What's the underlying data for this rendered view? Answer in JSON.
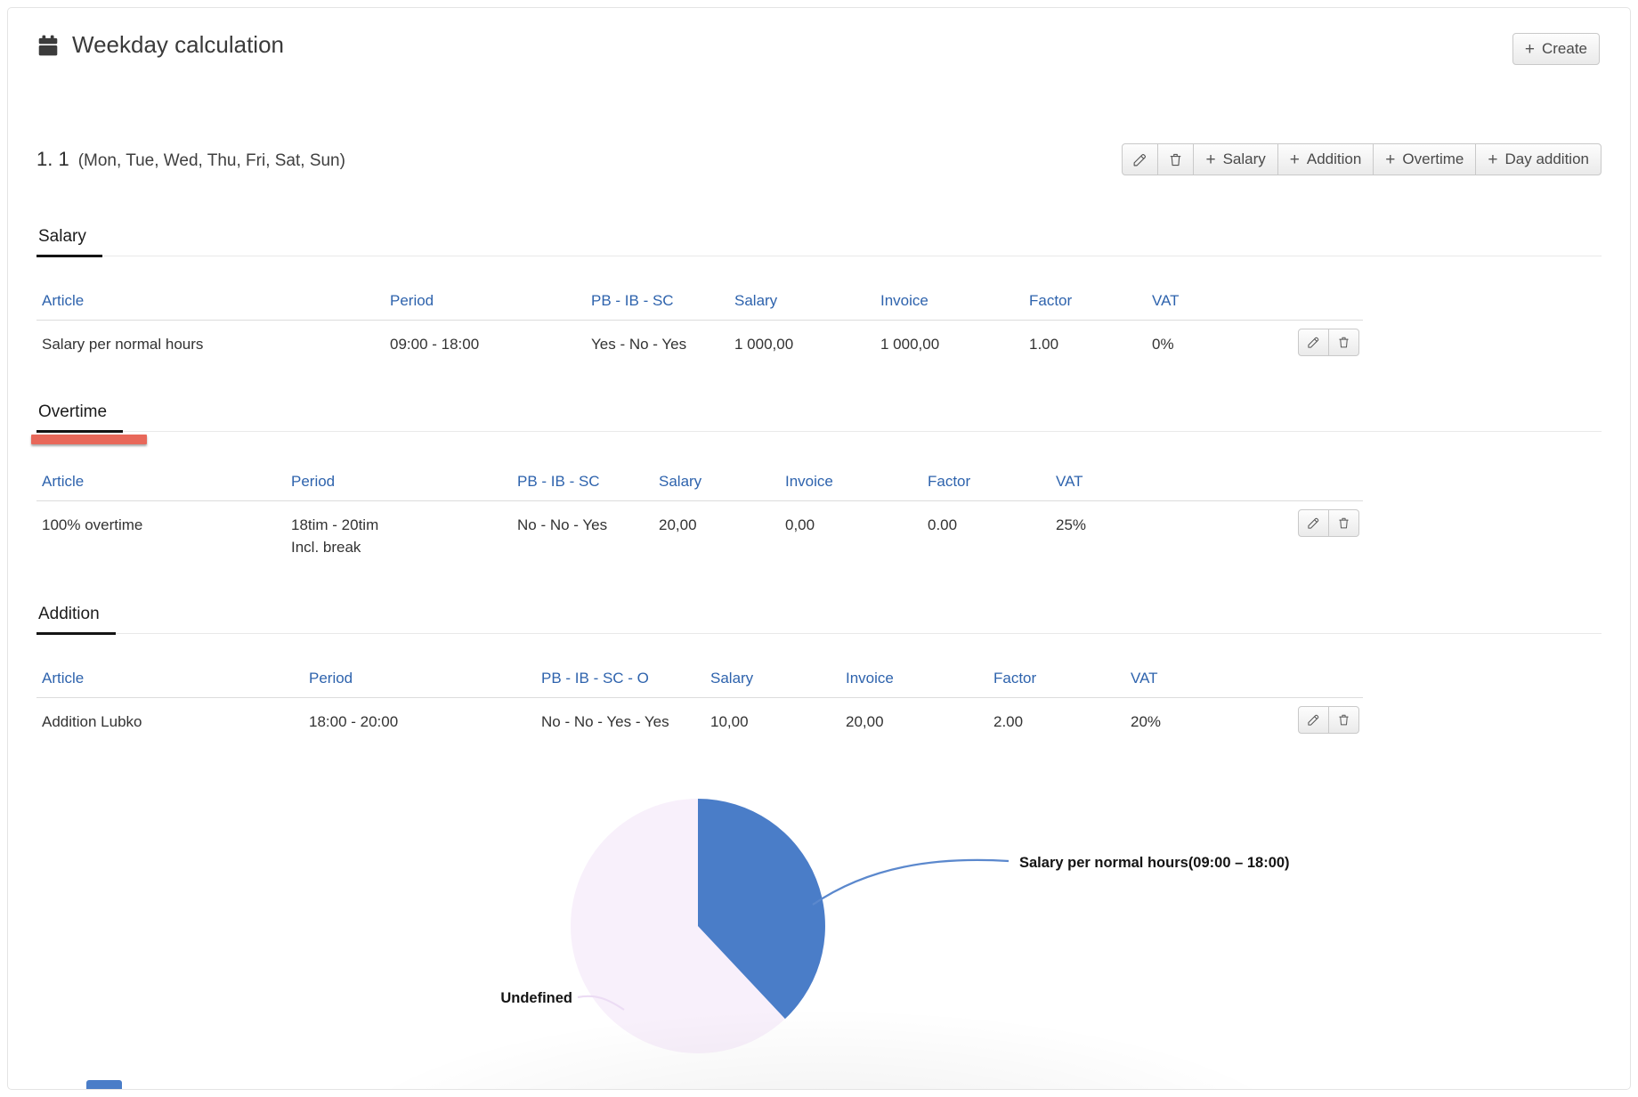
{
  "colors": {
    "accent_blue": "#2e63ad",
    "pie_blue": "#4a7dc8",
    "pie_light": "#f8f0fb",
    "marker_red": "#e8685a"
  },
  "icons": {
    "plus_glyph": "+",
    "names": [
      "calendar-icon",
      "pencil-icon",
      "trash-icon",
      "plus-icon"
    ]
  },
  "header": {
    "title": "Weekday calculation",
    "create_label": "Create"
  },
  "group": {
    "number": "1. 1",
    "days": "(Mon, Tue, Wed, Thu, Fri, Sat, Sun)",
    "toolbar": {
      "salary": "Salary",
      "addition": "Addition",
      "overtime": "Overtime",
      "day_addition": "Day addition"
    }
  },
  "sections": [
    {
      "title": "Salary",
      "columns": [
        "Article",
        "Period",
        "PB - IB - SC",
        "Salary",
        "Invoice",
        "Factor",
        "VAT"
      ],
      "rows": [
        {
          "article": "Salary per normal hours",
          "period": "09:00 - 18:00",
          "period_note": "",
          "pb": "Yes - No - Yes",
          "salary": "1 000,00",
          "invoice": "1 000,00",
          "factor": "1.00",
          "vat": "0%"
        }
      ]
    },
    {
      "title": "Overtime",
      "columns": [
        "Article",
        "Period",
        "PB - IB - SC",
        "Salary",
        "Invoice",
        "Factor",
        "VAT"
      ],
      "rows": [
        {
          "article": "100% overtime",
          "period": "18tim - 20tim",
          "period_note": "Incl. break",
          "pb": "No - No - Yes",
          "salary": "20,00",
          "invoice": "0,00",
          "factor": "0.00",
          "vat": "25%"
        }
      ]
    },
    {
      "title": "Addition",
      "columns": [
        "Article",
        "Period",
        "PB - IB - SC - O",
        "Salary",
        "Invoice",
        "Factor",
        "VAT"
      ],
      "rows": [
        {
          "article": "Addition Lubko",
          "period": "18:00 - 20:00",
          "period_note": "",
          "pb": "No - No - Yes - Yes",
          "salary": "10,00",
          "invoice": "20,00",
          "factor": "2.00",
          "vat": "20%"
        }
      ]
    }
  ],
  "chart_data": {
    "type": "pie",
    "title": "",
    "slices": [
      {
        "label": "Salary per normal hours(09:00 – 18:00)",
        "value_hours": 9,
        "percent": 38,
        "color": "#4a7dc8"
      },
      {
        "label": "Undefined",
        "value_hours": 15,
        "percent": 62,
        "color": "#f8f0fb"
      }
    ],
    "start_angle_deg": 0,
    "direction": "clockwise",
    "labels": "callout",
    "legend_position": "none"
  }
}
